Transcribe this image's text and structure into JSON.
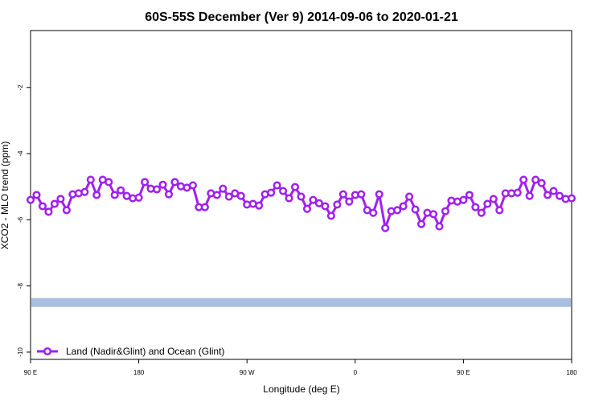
{
  "chart_data": {
    "type": "line",
    "title": "60S-55S December (Ver 9)   2014-09-06 to 2020-01-21",
    "x_label": "Longitude (deg E)",
    "y_label": "XCO2 - MLO trend (ppm)",
    "xlim": [
      90,
      540
    ],
    "xticks": [
      {
        "value": 90,
        "label": "90 E"
      },
      {
        "value": 180,
        "label": "180"
      },
      {
        "value": 270,
        "label": "90 W"
      },
      {
        "value": 360,
        "label": "0"
      },
      {
        "value": 450,
        "label": "90 E"
      },
      {
        "value": 540,
        "label": "180"
      }
    ],
    "ylim": [
      -10.22,
      -0.28
    ],
    "yticks": [
      -10,
      -8,
      -6,
      -4,
      -2
    ],
    "legend": "bottom-left",
    "band": {
      "value": -8.5,
      "color": "#a8bfe0"
    },
    "x": [
      90,
      95,
      100,
      105,
      110,
      115,
      120,
      125,
      130,
      135,
      140,
      145,
      150,
      155,
      160,
      165,
      170,
      175,
      180,
      185,
      190,
      195,
      200,
      205,
      210,
      215,
      220,
      225,
      230,
      235,
      240,
      245,
      250,
      255,
      260,
      265,
      270,
      275,
      280,
      285,
      290,
      295,
      300,
      305,
      310,
      315,
      320,
      325,
      330,
      335,
      340,
      345,
      350,
      355,
      360,
      365,
      370,
      375,
      380,
      385,
      390,
      395,
      400,
      405,
      410,
      415,
      420,
      425,
      430,
      435,
      440,
      445,
      450,
      455,
      460,
      465,
      470,
      475,
      480,
      485,
      490,
      495,
      500,
      505,
      510,
      515,
      520,
      525,
      530,
      535,
      540
    ],
    "series": [
      {
        "name": "Land (Nadir&Glint) and Ocean (Glint)",
        "color": "#a020f0",
        "values": [
          -5.4,
          -5.25,
          -5.59,
          -5.76,
          -5.52,
          -5.37,
          -5.71,
          -5.23,
          -5.2,
          -5.16,
          -4.79,
          -5.25,
          -4.79,
          -4.86,
          -5.25,
          -5.11,
          -5.28,
          -5.35,
          -5.33,
          -4.86,
          -5.06,
          -5.08,
          -4.94,
          -5.23,
          -4.86,
          -4.99,
          -5.03,
          -4.96,
          -5.62,
          -5.62,
          -5.2,
          -5.25,
          -5.06,
          -5.3,
          -5.2,
          -5.28,
          -5.54,
          -5.52,
          -5.57,
          -5.23,
          -5.18,
          -4.96,
          -5.13,
          -5.35,
          -5.01,
          -5.3,
          -5.67,
          -5.4,
          -5.5,
          -5.59,
          -5.88,
          -5.54,
          -5.23,
          -5.45,
          -5.25,
          -5.23,
          -5.71,
          -5.79,
          -5.23,
          -6.25,
          -5.74,
          -5.71,
          -5.59,
          -5.3,
          -5.69,
          -6.13,
          -5.79,
          -5.83,
          -6.2,
          -5.74,
          -5.42,
          -5.45,
          -5.4,
          -5.25,
          -5.62,
          -5.79,
          -5.52,
          -5.37,
          -5.71,
          -5.2,
          -5.2,
          -5.18,
          -4.79,
          -5.28,
          -4.79,
          -4.89,
          -5.25,
          -5.13,
          -5.28,
          -5.37,
          -5.35
        ]
      }
    ]
  }
}
